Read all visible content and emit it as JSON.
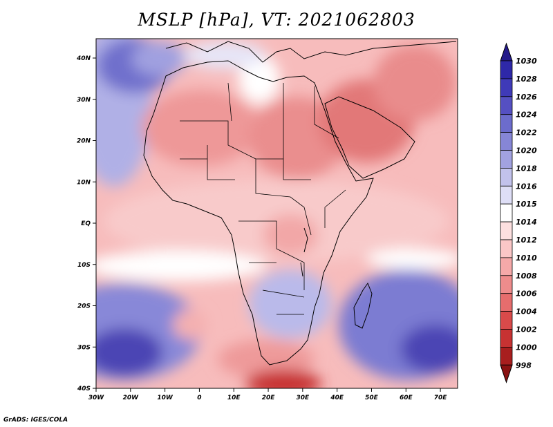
{
  "title": "MSLP [hPa], VT: 2021062803",
  "credit": "GrADS: IGES/COLA",
  "map": {
    "variable": "Mean sea level pressure",
    "units": "hPa",
    "valid_time": "2021062803",
    "lon_range": [
      -30,
      75
    ],
    "lat_range": [
      -40,
      45
    ],
    "x_ticks": [
      "30W",
      "20W",
      "10W",
      "0",
      "10E",
      "20E",
      "30E",
      "40E",
      "50E",
      "60E",
      "70E"
    ],
    "y_ticks": [
      "40N",
      "30N",
      "20N",
      "10N",
      "EQ",
      "10S",
      "20S",
      "30S",
      "40S"
    ]
  },
  "colorbar": {
    "levels": [
      "1030",
      "1028",
      "1026",
      "1024",
      "1022",
      "1020",
      "1018",
      "1016",
      "1015",
      "1014",
      "1012",
      "1010",
      "1008",
      "1006",
      "1004",
      "1002",
      "1000",
      "998"
    ],
    "colors": [
      "#241a8a",
      "#2e28a8",
      "#3f3ab8",
      "#5550c2",
      "#6c6ccc",
      "#8686d6",
      "#a2a2e0",
      "#c2c2ec",
      "#dedef6",
      "#ffffff",
      "#fde0e0",
      "#fbc7c7",
      "#f5a9a9",
      "#ee8c8c",
      "#e66d6d",
      "#d94a4a",
      "#c73232",
      "#a81e1e",
      "#8a1212"
    ]
  }
}
